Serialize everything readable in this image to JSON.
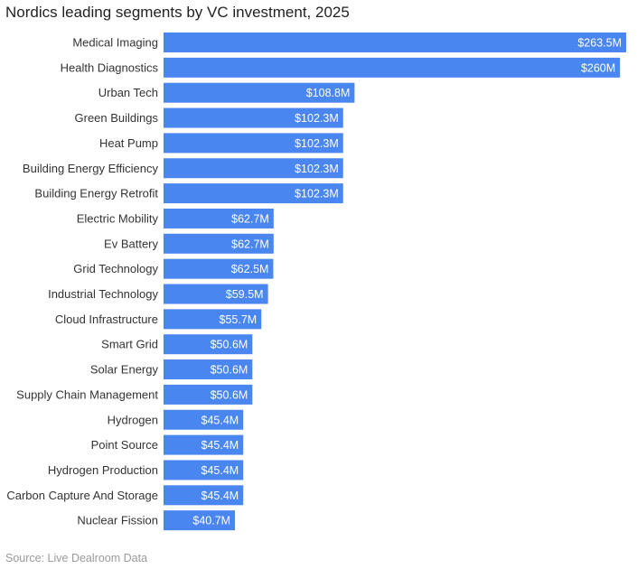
{
  "chart_data": {
    "type": "bar",
    "orientation": "horizontal",
    "title": "Nordics leading segments by VC investment, 2025",
    "source": "Source: Live Dealroom Data",
    "bar_color": "#4a86f0",
    "categories": [
      "Medical Imaging",
      "Health Diagnostics",
      "Urban Tech",
      "Green Buildings",
      "Heat Pump",
      "Building Energy Efficiency",
      "Building Energy Retrofit",
      "Electric Mobility",
      "Ev Battery",
      "Grid Technology",
      "Industrial Technology",
      "Cloud Infrastructure",
      "Smart Grid",
      "Solar Energy",
      "Supply Chain Management",
      "Hydrogen",
      "Point Source",
      "Hydrogen Production",
      "Carbon Capture And Storage",
      "Nuclear Fission"
    ],
    "values": [
      263.5,
      260,
      108.8,
      102.3,
      102.3,
      102.3,
      102.3,
      62.7,
      62.7,
      62.5,
      59.5,
      55.7,
      50.6,
      50.6,
      50.6,
      45.4,
      45.4,
      45.4,
      45.4,
      40.7
    ],
    "value_labels": [
      "$263.5M",
      "$260M",
      "$108.8M",
      "$102.3M",
      "$102.3M",
      "$102.3M",
      "$102.3M",
      "$62.7M",
      "$62.7M",
      "$62.5M",
      "$59.5M",
      "$55.7M",
      "$50.6M",
      "$50.6M",
      "$50.6M",
      "$45.4M",
      "$45.4M",
      "$45.4M",
      "$45.4M",
      "$40.7M"
    ],
    "xlim": [
      0,
      263.5
    ],
    "grid": false,
    "legend": "none"
  }
}
